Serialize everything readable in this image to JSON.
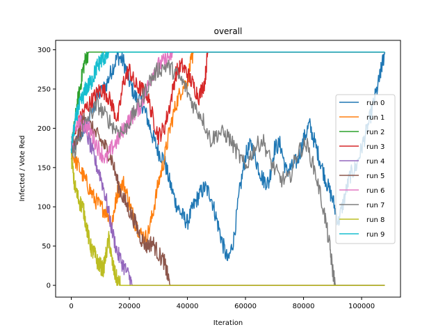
{
  "chart_data": {
    "type": "line",
    "title": "overall",
    "xlabel": "Iteration",
    "ylabel": "Infected / Vote Red",
    "xlim": [
      -5400,
      113400
    ],
    "ylim": [
      -15,
      312
    ],
    "x_ticks": [
      0,
      20000,
      40000,
      60000,
      80000,
      100000
    ],
    "y_ticks": [
      0,
      50,
      100,
      150,
      200,
      250,
      300
    ],
    "legend_position": "center-right",
    "grid": false,
    "series": [
      {
        "name": "run 0",
        "color": "#1f77b4",
        "points": [
          [
            0,
            170
          ],
          [
            3000,
            190
          ],
          [
            6000,
            210
          ],
          [
            9000,
            240
          ],
          [
            12000,
            255
          ],
          [
            14000,
            275
          ],
          [
            16000,
            292
          ],
          [
            18000,
            285
          ],
          [
            20000,
            260
          ],
          [
            22000,
            240
          ],
          [
            24000,
            235
          ],
          [
            26000,
            215
          ],
          [
            28000,
            190
          ],
          [
            30000,
            170
          ],
          [
            32000,
            160
          ],
          [
            34000,
            130
          ],
          [
            36000,
            105
          ],
          [
            38000,
            90
          ],
          [
            40000,
            80
          ],
          [
            42000,
            100
          ],
          [
            44000,
            115
          ],
          [
            46000,
            125
          ],
          [
            48000,
            115
          ],
          [
            50000,
            85
          ],
          [
            52000,
            55
          ],
          [
            54000,
            30
          ],
          [
            56000,
            60
          ],
          [
            58000,
            120
          ],
          [
            60000,
            165
          ],
          [
            62000,
            180
          ],
          [
            64000,
            155
          ],
          [
            66000,
            135
          ],
          [
            68000,
            130
          ],
          [
            70000,
            175
          ],
          [
            72000,
            180
          ],
          [
            74000,
            145
          ],
          [
            76000,
            150
          ],
          [
            78000,
            160
          ],
          [
            80000,
            185
          ],
          [
            82000,
            205
          ],
          [
            84000,
            180
          ],
          [
            86000,
            155
          ],
          [
            88000,
            130
          ],
          [
            90000,
            110
          ],
          [
            92000,
            80
          ],
          [
            94000,
            110
          ],
          [
            96000,
            140
          ],
          [
            98000,
            150
          ],
          [
            100000,
            175
          ],
          [
            102000,
            200
          ],
          [
            104000,
            230
          ],
          [
            106000,
            260
          ],
          [
            107000,
            280
          ],
          [
            108000,
            297
          ]
        ]
      },
      {
        "name": "run 1",
        "color": "#ff7f0e",
        "points": [
          [
            0,
            170
          ],
          [
            2000,
            155
          ],
          [
            4000,
            140
          ],
          [
            6000,
            125
          ],
          [
            8000,
            110
          ],
          [
            10000,
            100
          ],
          [
            12000,
            95
          ],
          [
            14000,
            80
          ],
          [
            15000,
            100
          ],
          [
            16000,
            120
          ],
          [
            18000,
            130
          ],
          [
            20000,
            105
          ],
          [
            22000,
            80
          ],
          [
            24000,
            65
          ],
          [
            26000,
            60
          ],
          [
            28000,
            90
          ],
          [
            30000,
            130
          ],
          [
            32000,
            160
          ],
          [
            34000,
            200
          ],
          [
            36000,
            230
          ],
          [
            38000,
            250
          ],
          [
            40000,
            260
          ],
          [
            41000,
            280
          ],
          [
            42000,
            297
          ]
        ]
      },
      {
        "name": "run 2",
        "color": "#2ca02c",
        "points": [
          [
            0,
            170
          ],
          [
            1000,
            200
          ],
          [
            2000,
            230
          ],
          [
            3000,
            250
          ],
          [
            4000,
            275
          ],
          [
            5000,
            290
          ],
          [
            6000,
            297
          ]
        ]
      },
      {
        "name": "run 3",
        "color": "#d62728",
        "points": [
          [
            0,
            180
          ],
          [
            2000,
            200
          ],
          [
            4000,
            220
          ],
          [
            6000,
            230
          ],
          [
            8000,
            240
          ],
          [
            10000,
            250
          ],
          [
            12000,
            245
          ],
          [
            14000,
            230
          ],
          [
            16000,
            210
          ],
          [
            18000,
            260
          ],
          [
            20000,
            275
          ],
          [
            22000,
            255
          ],
          [
            24000,
            250
          ],
          [
            26000,
            245
          ],
          [
            28000,
            215
          ],
          [
            30000,
            190
          ],
          [
            32000,
            200
          ],
          [
            34000,
            230
          ],
          [
            36000,
            270
          ],
          [
            38000,
            280
          ],
          [
            40000,
            270
          ],
          [
            42000,
            255
          ],
          [
            44000,
            240
          ],
          [
            46000,
            260
          ],
          [
            47000,
            297
          ]
        ]
      },
      {
        "name": "run 4",
        "color": "#9467bd",
        "points": [
          [
            0,
            170
          ],
          [
            2000,
            190
          ],
          [
            4000,
            210
          ],
          [
            6000,
            185
          ],
          [
            8000,
            160
          ],
          [
            10000,
            140
          ],
          [
            12000,
            110
          ],
          [
            14000,
            70
          ],
          [
            16000,
            40
          ],
          [
            18000,
            25
          ],
          [
            20000,
            10
          ],
          [
            21000,
            0
          ]
        ]
      },
      {
        "name": "run 5",
        "color": "#8c564b",
        "points": [
          [
            0,
            170
          ],
          [
            2000,
            185
          ],
          [
            4000,
            210
          ],
          [
            6000,
            205
          ],
          [
            8000,
            195
          ],
          [
            10000,
            185
          ],
          [
            12000,
            175
          ],
          [
            14000,
            160
          ],
          [
            16000,
            130
          ],
          [
            18000,
            110
          ],
          [
            20000,
            95
          ],
          [
            22000,
            80
          ],
          [
            24000,
            60
          ],
          [
            26000,
            50
          ],
          [
            28000,
            55
          ],
          [
            30000,
            40
          ],
          [
            32000,
            30
          ],
          [
            33000,
            15
          ],
          [
            34000,
            0
          ]
        ]
      },
      {
        "name": "run 6",
        "color": "#e377c2",
        "points": [
          [
            0,
            180
          ],
          [
            2000,
            210
          ],
          [
            4000,
            205
          ],
          [
            6000,
            200
          ],
          [
            8000,
            185
          ],
          [
            10000,
            170
          ],
          [
            12000,
            160
          ],
          [
            14000,
            175
          ],
          [
            16000,
            185
          ],
          [
            18000,
            200
          ],
          [
            20000,
            210
          ],
          [
            22000,
            220
          ],
          [
            24000,
            230
          ],
          [
            26000,
            250
          ],
          [
            28000,
            270
          ],
          [
            30000,
            280
          ],
          [
            32000,
            285
          ],
          [
            34000,
            292
          ],
          [
            35000,
            297
          ]
        ]
      },
      {
        "name": "run 7",
        "color": "#7f7f7f",
        "points": [
          [
            0,
            160
          ],
          [
            3000,
            190
          ],
          [
            6000,
            215
          ],
          [
            9000,
            230
          ],
          [
            12000,
            215
          ],
          [
            15000,
            200
          ],
          [
            18000,
            195
          ],
          [
            21000,
            215
          ],
          [
            24000,
            235
          ],
          [
            27000,
            260
          ],
          [
            30000,
            275
          ],
          [
            33000,
            280
          ],
          [
            36000,
            270
          ],
          [
            39000,
            255
          ],
          [
            42000,
            230
          ],
          [
            45000,
            215
          ],
          [
            48000,
            185
          ],
          [
            51000,
            195
          ],
          [
            54000,
            190
          ],
          [
            57000,
            170
          ],
          [
            60000,
            150
          ],
          [
            63000,
            175
          ],
          [
            66000,
            185
          ],
          [
            69000,
            155
          ],
          [
            72000,
            135
          ],
          [
            75000,
            135
          ],
          [
            78000,
            170
          ],
          [
            81000,
            180
          ],
          [
            84000,
            145
          ],
          [
            87000,
            95
          ],
          [
            89000,
            50
          ],
          [
            90000,
            20
          ],
          [
            91000,
            0
          ]
        ]
      },
      {
        "name": "run 8",
        "color": "#bcbd22",
        "points": [
          [
            0,
            165
          ],
          [
            1000,
            130
          ],
          [
            2000,
            115
          ],
          [
            3000,
            105
          ],
          [
            4000,
            100
          ],
          [
            5000,
            80
          ],
          [
            6000,
            60
          ],
          [
            7000,
            45
          ],
          [
            8000,
            40
          ],
          [
            9000,
            30
          ],
          [
            10000,
            25
          ],
          [
            11000,
            20
          ],
          [
            12000,
            40
          ],
          [
            13000,
            60
          ],
          [
            14000,
            30
          ],
          [
            15000,
            15
          ],
          [
            16000,
            5
          ],
          [
            17000,
            0
          ]
        ]
      },
      {
        "name": "run 9",
        "color": "#17becf",
        "points": [
          [
            0,
            175
          ],
          [
            1000,
            200
          ],
          [
            2000,
            220
          ],
          [
            3000,
            230
          ],
          [
            4000,
            240
          ],
          [
            5000,
            250
          ],
          [
            6000,
            255
          ],
          [
            7000,
            260
          ],
          [
            8000,
            270
          ],
          [
            9000,
            280
          ],
          [
            10000,
            285
          ],
          [
            11000,
            290
          ],
          [
            12000,
            292
          ],
          [
            13000,
            297
          ]
        ]
      }
    ]
  }
}
